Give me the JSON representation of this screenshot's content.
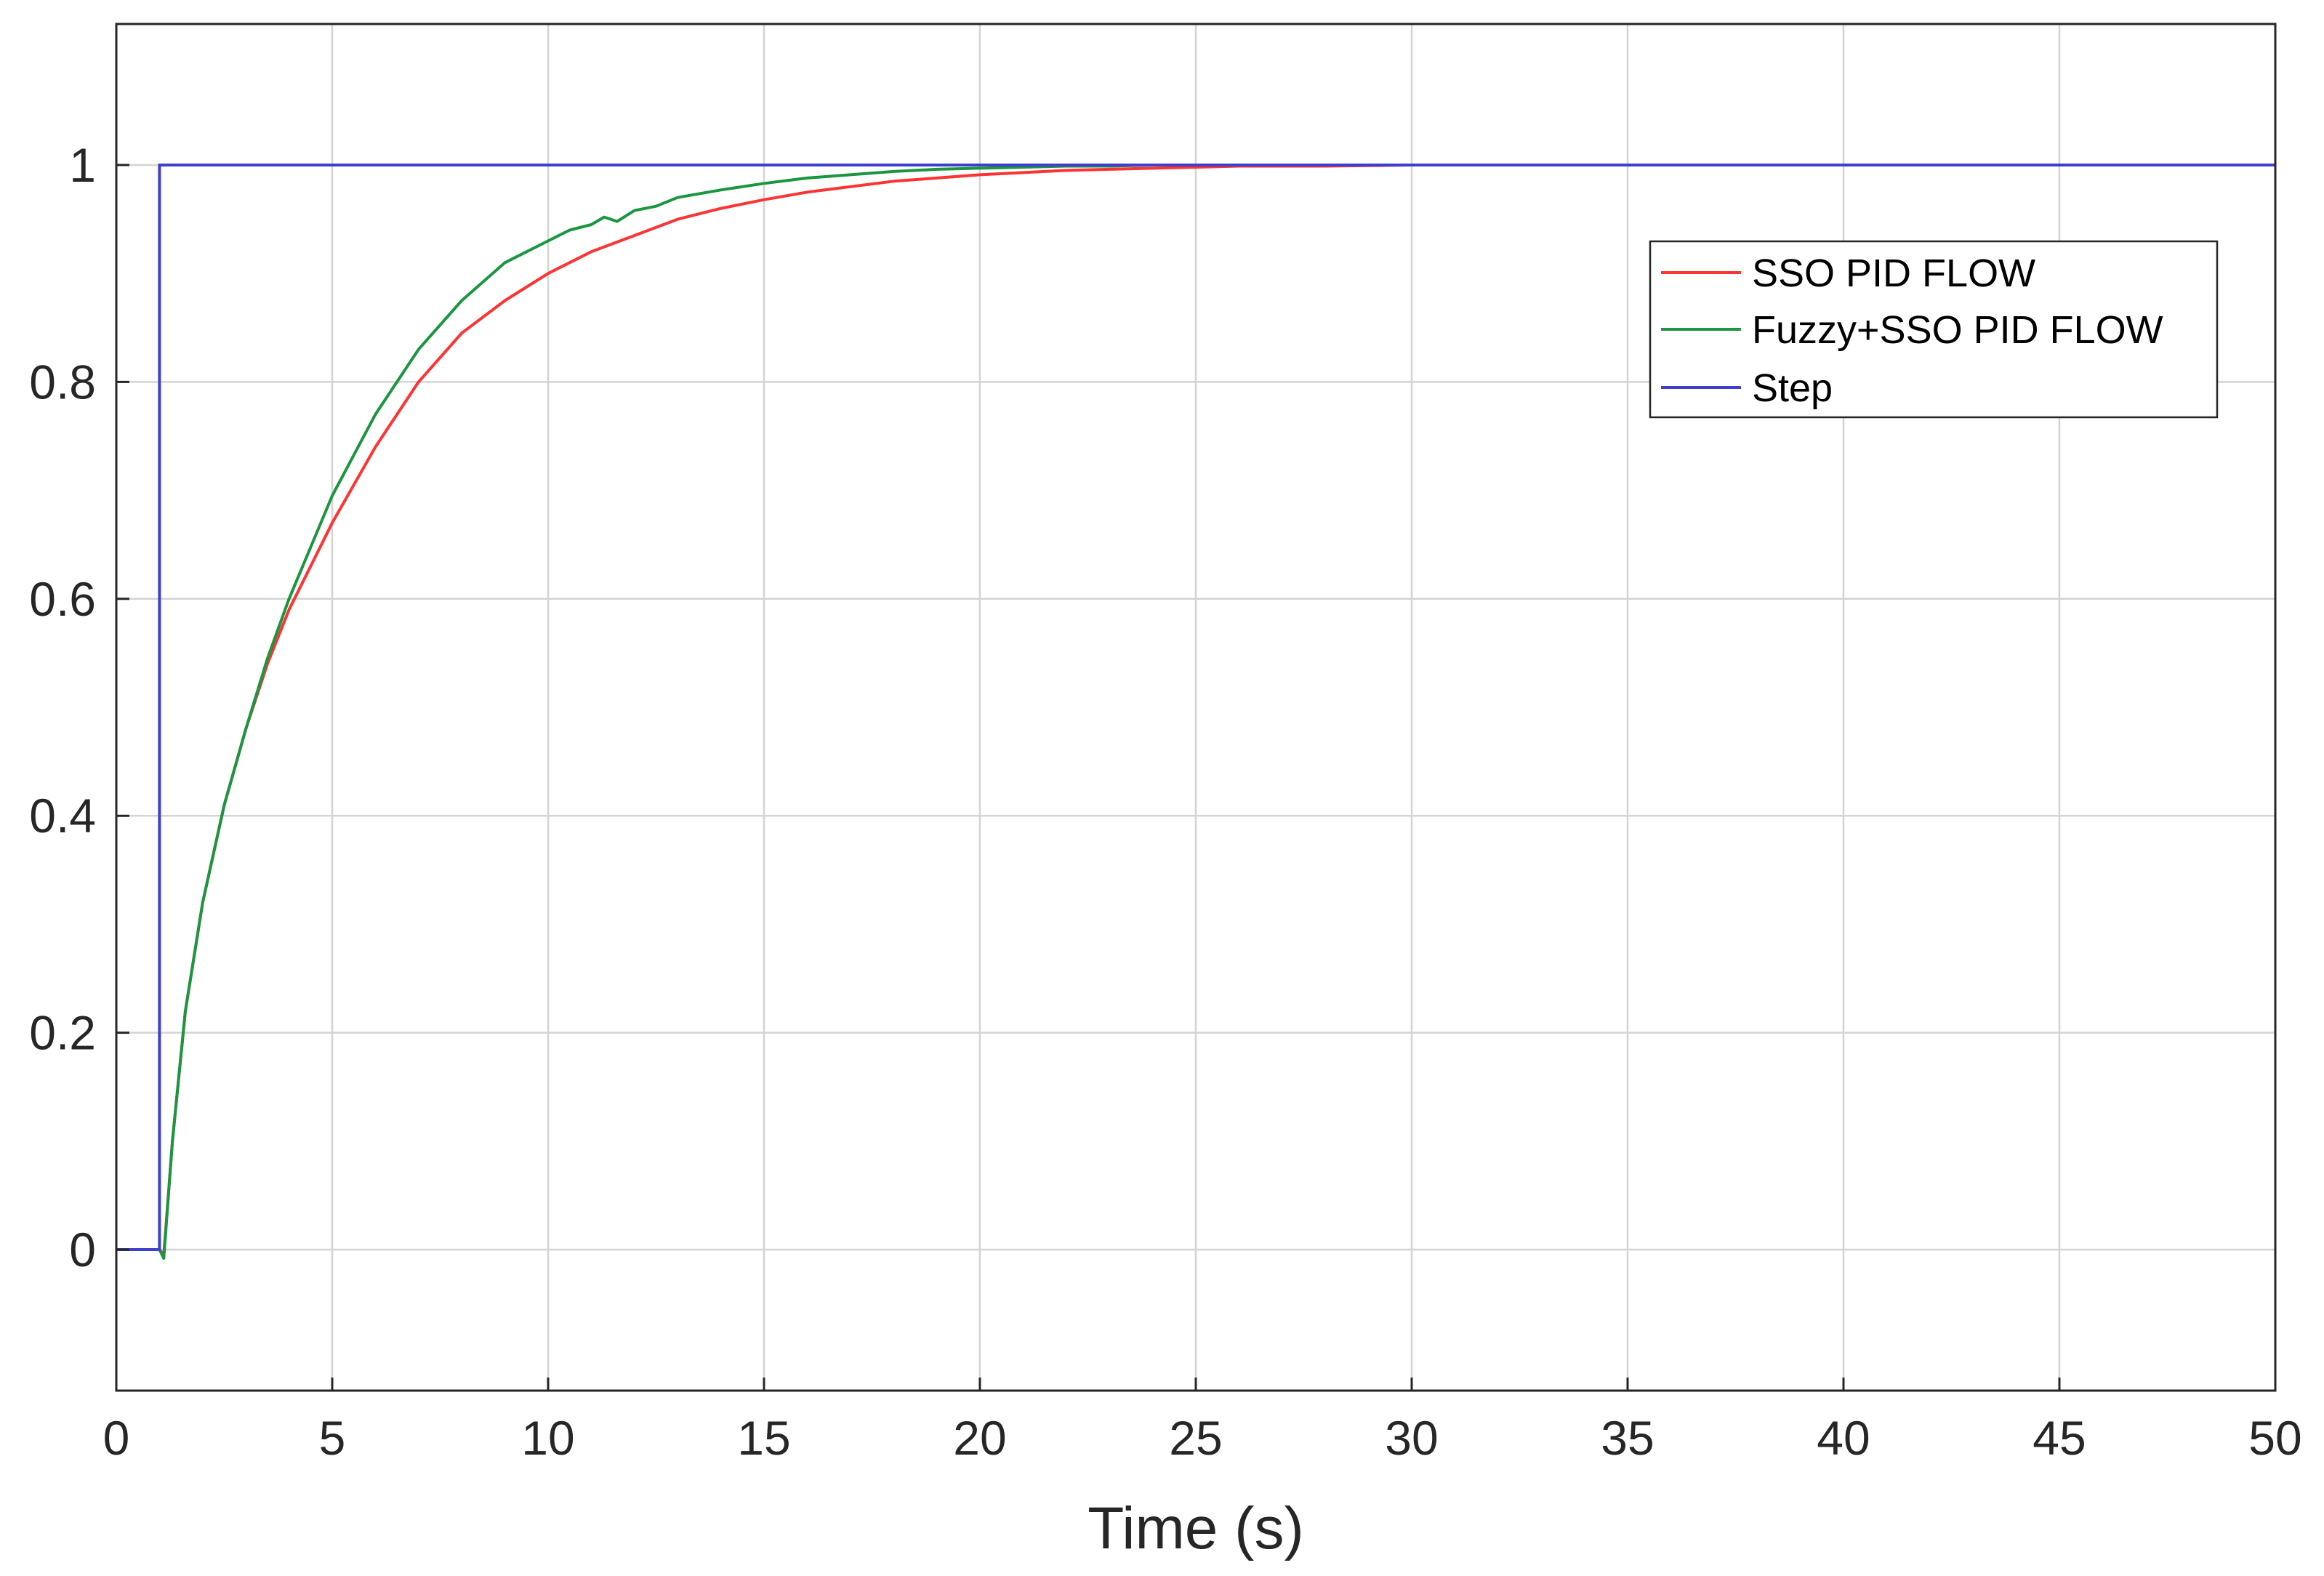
{
  "chart_data": {
    "type": "line",
    "title": "",
    "xlabel": "Time (s)",
    "ylabel": "",
    "xlim": [
      0,
      50
    ],
    "ylim": [
      -0.13,
      1.13
    ],
    "xticks": [
      0,
      5,
      10,
      15,
      20,
      25,
      30,
      35,
      40,
      45,
      50
    ],
    "xtick_labels": [
      "0",
      "5",
      "10",
      "15",
      "20",
      "25",
      "30",
      "35",
      "40",
      "45",
      "50"
    ],
    "yticks": [
      0,
      0.2,
      0.4,
      0.6,
      0.8,
      1
    ],
    "ytick_labels": [
      "0",
      "0.2",
      "0.4",
      "0.6",
      "0.8",
      "1"
    ],
    "grid": true,
    "legend_position": "top-right",
    "series": [
      {
        "name": "SSO PID FLOW",
        "color": "#ff3333",
        "x": [
          0,
          1,
          1.1,
          1.3,
          1.6,
          2,
          2.5,
          3,
          3.5,
          4,
          5,
          6,
          7,
          8,
          9,
          10,
          11,
          12,
          13,
          14,
          15,
          16,
          17,
          18,
          19,
          20,
          21,
          22,
          23,
          24,
          25,
          26,
          28,
          30,
          35,
          40,
          45,
          50
        ],
        "y": [
          0,
          0,
          -0.005,
          0.1,
          0.22,
          0.32,
          0.41,
          0.48,
          0.54,
          0.59,
          0.67,
          0.74,
          0.8,
          0.845,
          0.875,
          0.9,
          0.92,
          0.935,
          0.95,
          0.96,
          0.968,
          0.975,
          0.98,
          0.985,
          0.988,
          0.991,
          0.993,
          0.995,
          0.996,
          0.997,
          0.998,
          0.999,
          0.999,
          1,
          1,
          1,
          1,
          1
        ]
      },
      {
        "name": "Fuzzy+SSO PID FLOW",
        "color": "#1a9641",
        "x": [
          0,
          1,
          1.1,
          1.3,
          1.6,
          2,
          2.5,
          3,
          3.5,
          4,
          5,
          6,
          7,
          8,
          9,
          10,
          10.5,
          11,
          11.3,
          11.6,
          12,
          12.5,
          13,
          14,
          15,
          16,
          17,
          18,
          19,
          20,
          21,
          22,
          23,
          24,
          25,
          26,
          28,
          30,
          35,
          40,
          45,
          50
        ],
        "y": [
          0,
          0,
          -0.008,
          0.1,
          0.22,
          0.32,
          0.41,
          0.48,
          0.545,
          0.6,
          0.695,
          0.77,
          0.83,
          0.875,
          0.91,
          0.93,
          0.94,
          0.945,
          0.952,
          0.948,
          0.958,
          0.962,
          0.97,
          0.977,
          0.983,
          0.988,
          0.991,
          0.994,
          0.996,
          0.997,
          0.998,
          0.999,
          0.999,
          1,
          1,
          1,
          1,
          1,
          1,
          1,
          1,
          1
        ]
      },
      {
        "name": "Step",
        "color": "#3f3fcf",
        "x": [
          0,
          1,
          1,
          50
        ],
        "y": [
          0,
          0,
          1,
          1
        ]
      }
    ]
  }
}
